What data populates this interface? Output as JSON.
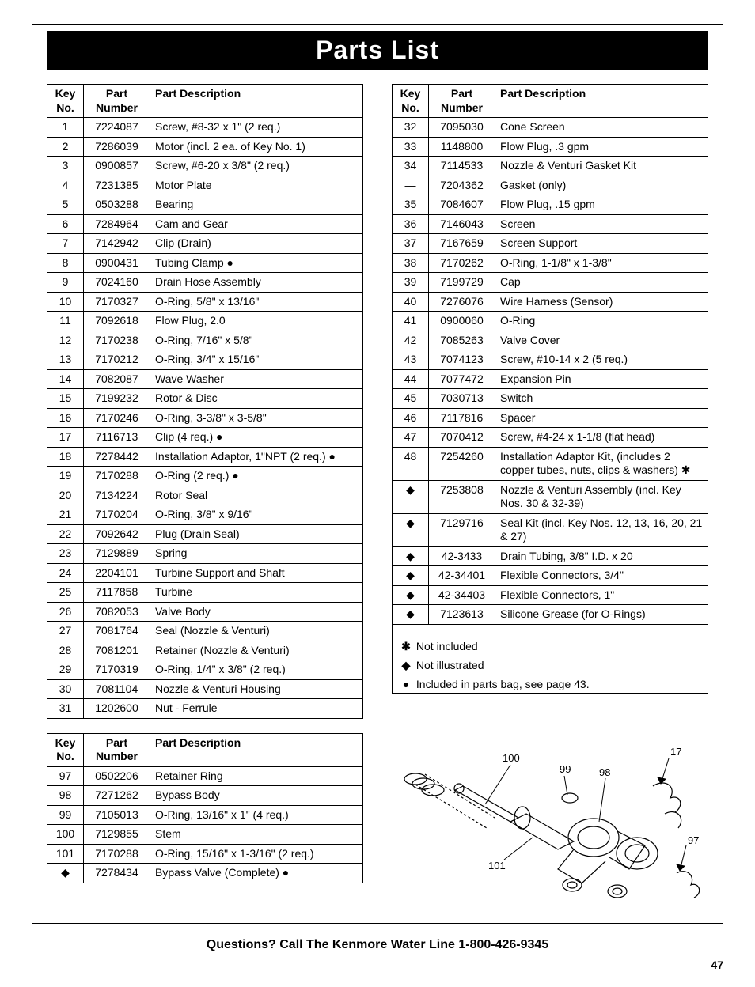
{
  "title": "Parts List",
  "footer": "Questions? Call The Kenmore Water Line 1-800-426-9345",
  "page_number": "47",
  "headers": {
    "key": "Key No.",
    "part": "Part Number",
    "desc": "Part Description"
  },
  "table1": [
    {
      "k": "1",
      "p": "7224087",
      "d": "Screw, #8-32 x 1\" (2 req.)"
    },
    {
      "k": "2",
      "p": "7286039",
      "d": "Motor (incl. 2 ea. of Key No. 1)"
    },
    {
      "k": "3",
      "p": "0900857",
      "d": "Screw, #6-20 x 3/8\" (2 req.)"
    },
    {
      "k": "4",
      "p": "7231385",
      "d": "Motor Plate"
    },
    {
      "k": "5",
      "p": "0503288",
      "d": "Bearing"
    },
    {
      "k": "6",
      "p": "7284964",
      "d": "Cam and Gear"
    },
    {
      "k": "7",
      "p": "7142942",
      "d": "Clip (Drain)"
    },
    {
      "k": "8",
      "p": "0900431",
      "d": "Tubing Clamp ●"
    },
    {
      "k": "9",
      "p": "7024160",
      "d": "Drain Hose Assembly"
    },
    {
      "k": "10",
      "p": "7170327",
      "d": "O-Ring, 5/8\" x 13/16\""
    },
    {
      "k": "11",
      "p": "7092618",
      "d": "Flow Plug, 2.0"
    },
    {
      "k": "12",
      "p": "7170238",
      "d": "O-Ring, 7/16\" x 5/8\""
    },
    {
      "k": "13",
      "p": "7170212",
      "d": "O-Ring, 3/4\" x 15/16\""
    },
    {
      "k": "14",
      "p": "7082087",
      "d": "Wave Washer"
    },
    {
      "k": "15",
      "p": "7199232",
      "d": "Rotor & Disc"
    },
    {
      "k": "16",
      "p": "7170246",
      "d": "O-Ring, 3-3/8\" x 3-5/8\""
    },
    {
      "k": "17",
      "p": "7116713",
      "d": "Clip (4 req.) ●"
    },
    {
      "k": "18",
      "p": "7278442",
      "d": "Installation Adaptor, 1\"NPT (2 req.) ●"
    },
    {
      "k": "19",
      "p": "7170288",
      "d": "O-Ring (2 req.) ●"
    },
    {
      "k": "20",
      "p": "7134224",
      "d": "Rotor Seal"
    },
    {
      "k": "21",
      "p": "7170204",
      "d": "O-Ring, 3/8\" x 9/16\""
    },
    {
      "k": "22",
      "p": "7092642",
      "d": "Plug (Drain Seal)"
    },
    {
      "k": "23",
      "p": "7129889",
      "d": "Spring"
    },
    {
      "k": "24",
      "p": "2204101",
      "d": "Turbine Support and Shaft"
    },
    {
      "k": "25",
      "p": "7117858",
      "d": "Turbine"
    },
    {
      "k": "26",
      "p": "7082053",
      "d": "Valve Body"
    },
    {
      "k": "27",
      "p": "7081764",
      "d": "Seal (Nozzle & Venturi)"
    },
    {
      "k": "28",
      "p": "7081201",
      "d": "Retainer (Nozzle & Venturi)"
    },
    {
      "k": "29",
      "p": "7170319",
      "d": "O-Ring, 1/4\" x 3/8\" (2 req.)"
    },
    {
      "k": "30",
      "p": "7081104",
      "d": "Nozzle & Venturi Housing"
    },
    {
      "k": "31",
      "p": "1202600",
      "d": "Nut - Ferrule"
    }
  ],
  "table2": [
    {
      "k": "32",
      "p": "7095030",
      "d": "Cone Screen"
    },
    {
      "k": "33",
      "p": "1148800",
      "d": "Flow Plug, .3 gpm"
    },
    {
      "k": "34",
      "p": "7114533",
      "d": "Nozzle & Venturi Gasket Kit"
    },
    {
      "k": "—",
      "p": "7204362",
      "d": "Gasket (only)"
    },
    {
      "k": "35",
      "p": "7084607",
      "d": "Flow Plug, .15 gpm"
    },
    {
      "k": "36",
      "p": "7146043",
      "d": "Screen"
    },
    {
      "k": "37",
      "p": "7167659",
      "d": "Screen Support"
    },
    {
      "k": "38",
      "p": "7170262",
      "d": "O-Ring, 1-1/8\" x 1-3/8\""
    },
    {
      "k": "39",
      "p": "7199729",
      "d": "Cap"
    },
    {
      "k": "40",
      "p": "7276076",
      "d": "Wire Harness (Sensor)"
    },
    {
      "k": "41",
      "p": "0900060",
      "d": "O-Ring"
    },
    {
      "k": "42",
      "p": "7085263",
      "d": "Valve Cover"
    },
    {
      "k": "43",
      "p": "7074123",
      "d": "Screw, #10-14 x 2 (5 req.)"
    },
    {
      "k": "44",
      "p": "7077472",
      "d": "Expansion Pin"
    },
    {
      "k": "45",
      "p": "7030713",
      "d": "Switch"
    },
    {
      "k": "46",
      "p": "7117816",
      "d": "Spacer"
    },
    {
      "k": "47",
      "p": "7070412",
      "d": "Screw, #4-24 x 1-1/8 (flat head)"
    },
    {
      "k": "48",
      "p": "7254260",
      "d": "Installation Adaptor Kit, (includes 2 copper tubes, nuts, clips & washers) ✱"
    },
    {
      "k": "◆",
      "p": "7253808",
      "d": "Nozzle & Venturi Assembly (incl. Key Nos. 30 & 32-39)"
    },
    {
      "k": "◆",
      "p": "7129716",
      "d": "Seal Kit (incl. Key Nos. 12, 13, 16, 20, 21 & 27)"
    },
    {
      "k": "◆",
      "p": "42-3433",
      "d": "Drain Tubing, 3/8\" I.D. x 20"
    },
    {
      "k": "◆",
      "p": "42-34401",
      "d": "Flexible Connectors, 3/4\""
    },
    {
      "k": "◆",
      "p": "42-34403",
      "d": "Flexible Connectors, 1\""
    },
    {
      "k": "◆",
      "p": "7123613",
      "d": "Silicone Grease (for O-Rings)"
    }
  ],
  "table3": [
    {
      "k": "97",
      "p": "0502206",
      "d": "Retainer Ring"
    },
    {
      "k": "98",
      "p": "7271262",
      "d": "Bypass Body"
    },
    {
      "k": "99",
      "p": "7105013",
      "d": "O-Ring, 13/16\" x 1\" (4 req.)"
    },
    {
      "k": "100",
      "p": "7129855",
      "d": "Stem"
    },
    {
      "k": "101",
      "p": "7170288",
      "d": "O-Ring, 15/16\" x 1-3/16\" (2 req.)"
    },
    {
      "k": "◆",
      "p": "7278434",
      "d": "Bypass Valve (Complete) ●"
    }
  ],
  "legend": [
    {
      "sym": "✱",
      "text": "Not included"
    },
    {
      "sym": "◆",
      "text": "Not illustrated"
    },
    {
      "sym": "●",
      "text": "Included in parts bag, see page 43."
    }
  ],
  "diagram": {
    "labels": [
      "100",
      "99",
      "98",
      "17",
      "101",
      "97"
    ]
  },
  "colors": {
    "page_bg": "#ffffff",
    "title_bg": "#000000",
    "title_fg": "#ffffff",
    "border": "#000000",
    "text": "#000000"
  }
}
